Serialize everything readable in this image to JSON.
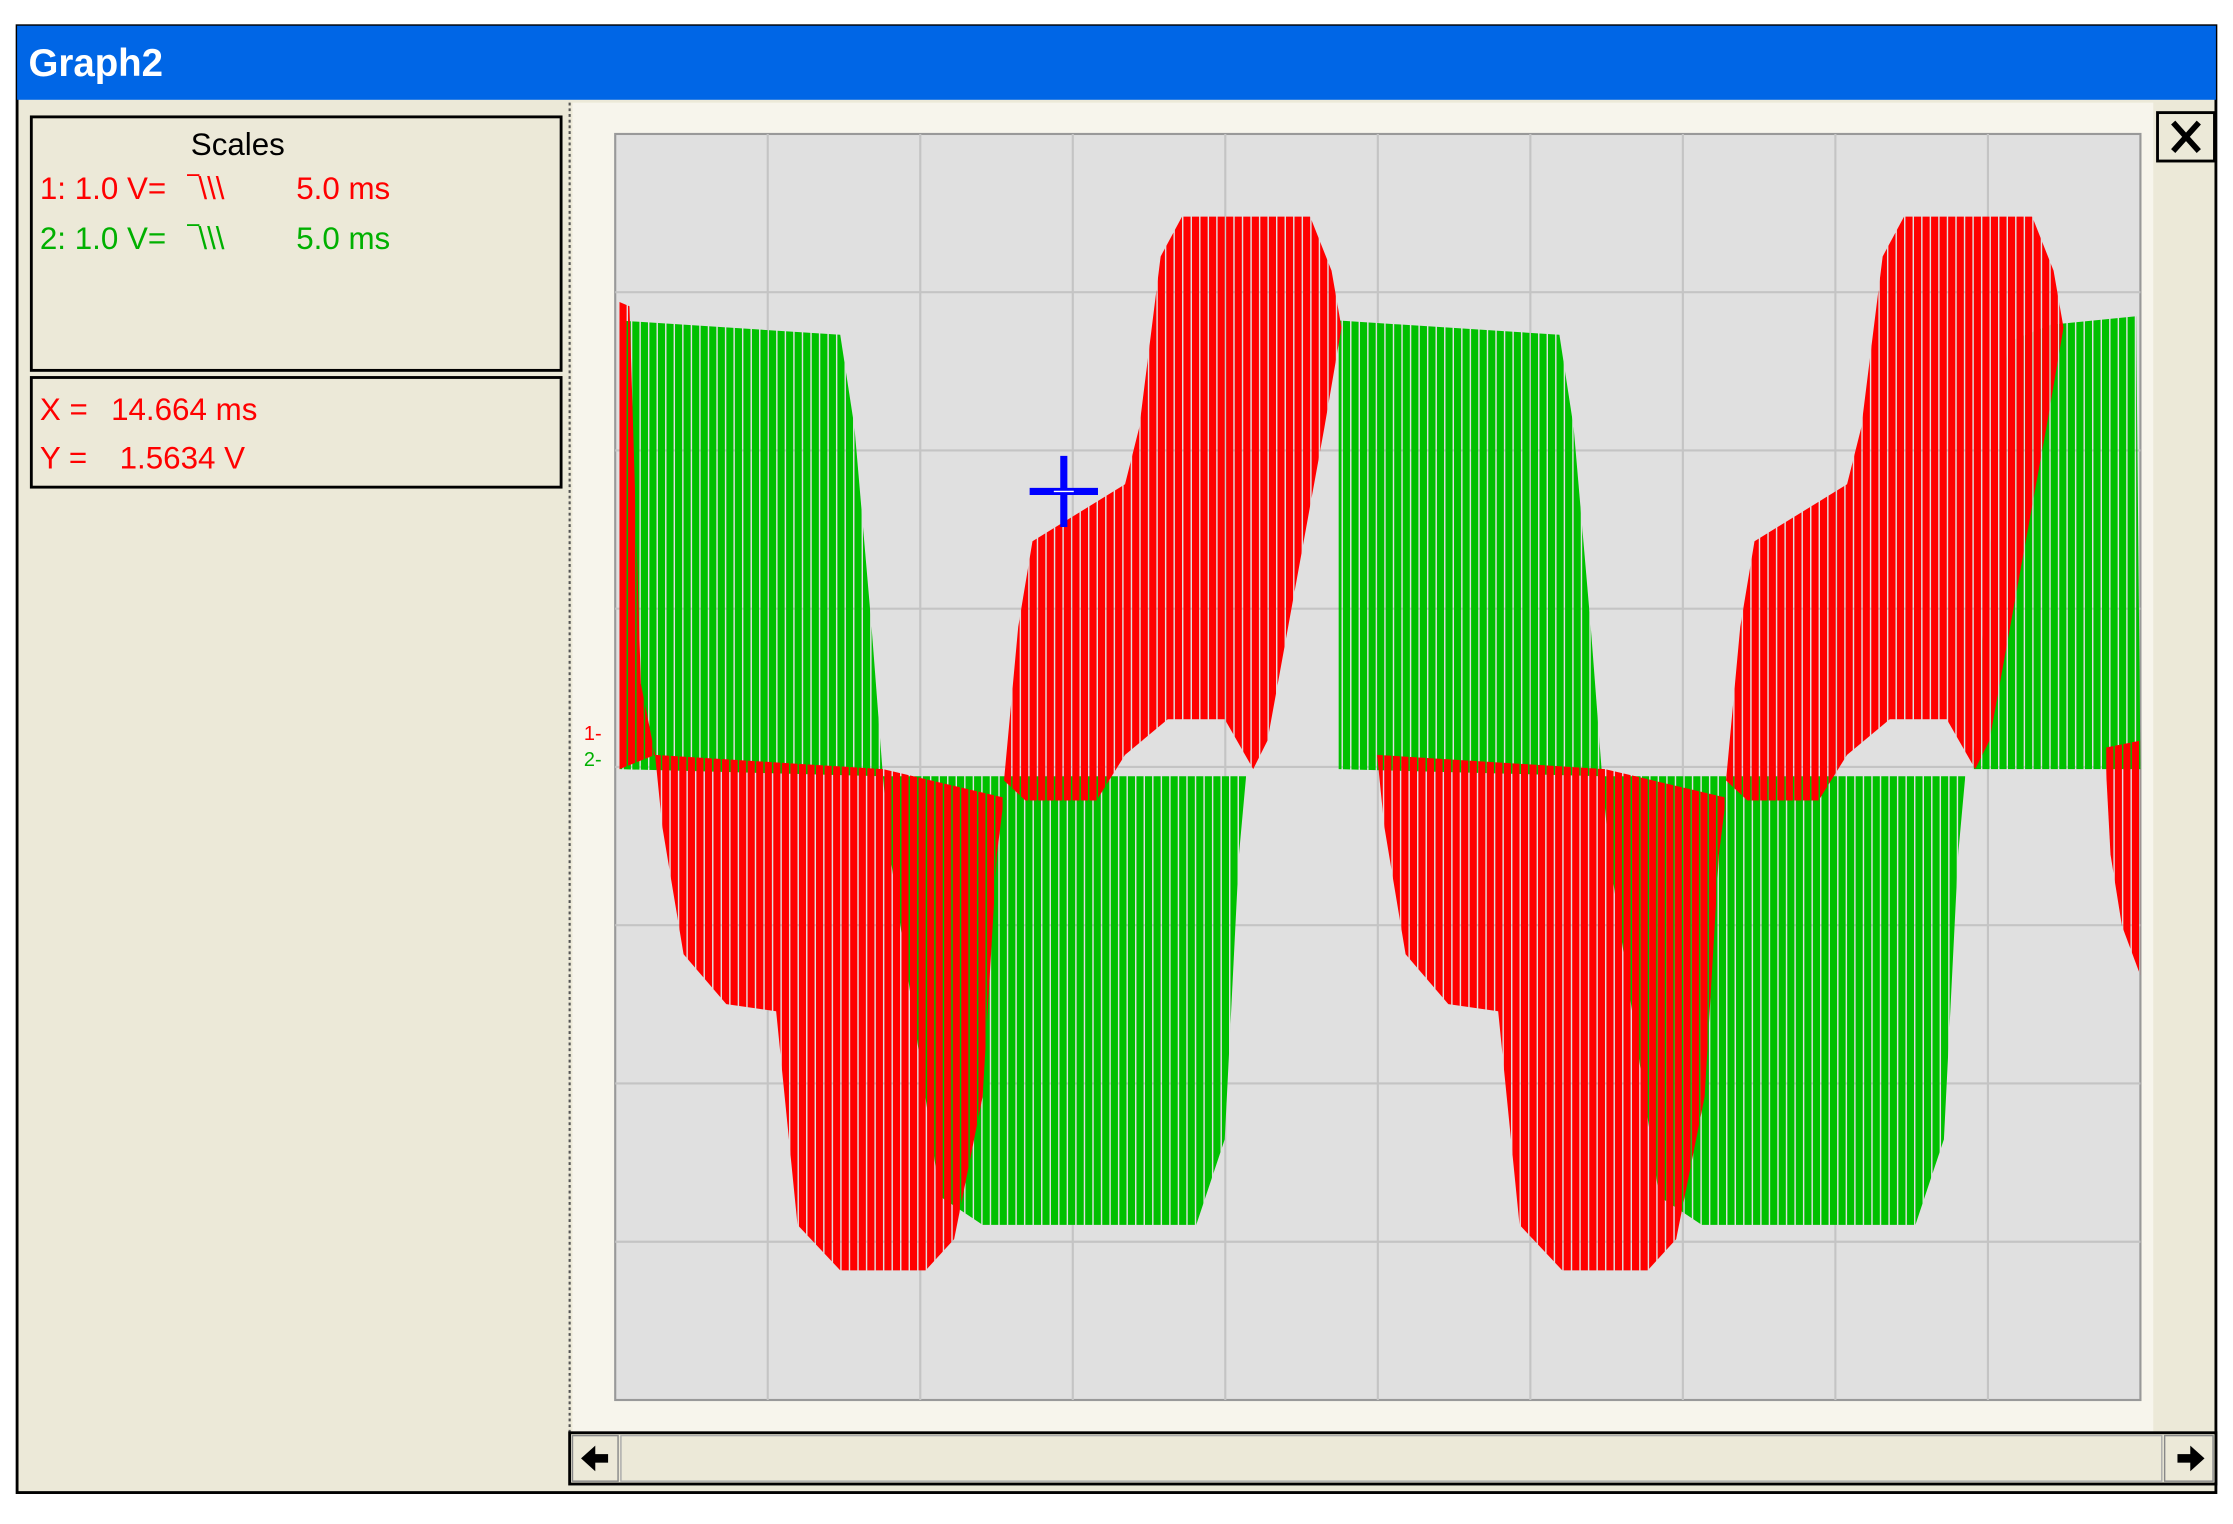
{
  "window": {
    "title": "Graph2"
  },
  "scales": {
    "heading": "Scales",
    "channels": [
      {
        "name": "1: 1.0 V=",
        "timebase_icon": "‾\\\\\\",
        "time": "5.0 ms"
      },
      {
        "name": "2: 1.0 V=",
        "timebase_icon": "‾\\\\\\",
        "time": "5.0 ms"
      }
    ]
  },
  "cursor": {
    "x_label": "X =",
    "x_value": "14.664 ms",
    "y_label": "Y =",
    "y_value": "1.5634 V"
  },
  "plot": {
    "channel_markers": [
      "1-",
      "2-"
    ]
  }
}
